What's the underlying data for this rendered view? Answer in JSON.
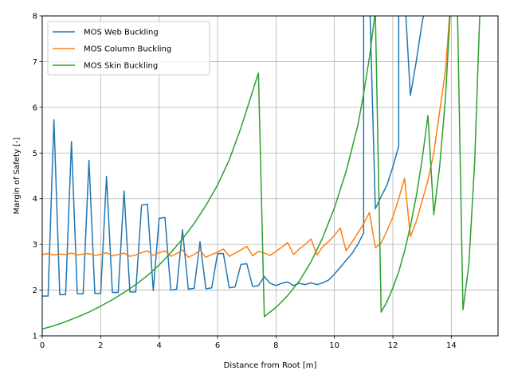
{
  "chart_data": {
    "type": "line",
    "xlabel": "Distance from Root [m]",
    "ylabel": "Margin of Safety [-]",
    "xlim": [
      0,
      15.6
    ],
    "ylim": [
      1,
      8
    ],
    "xticks": [
      "0",
      "2",
      "4",
      "6",
      "8",
      "10",
      "12",
      "14"
    ],
    "xtick_values": [
      0,
      2,
      4,
      6,
      8,
      10,
      12,
      14
    ],
    "yticks": [
      "1",
      "2",
      "3",
      "4",
      "5",
      "6",
      "7",
      "8"
    ],
    "ytick_values": [
      1,
      2,
      3,
      4,
      5,
      6,
      7,
      8
    ],
    "grid": true,
    "legend_position": "upper-left",
    "series": [
      {
        "name": "MOS Web Buckling",
        "color": "#1f77b4",
        "x": [
          0,
          0.2,
          0.4,
          0.6,
          0.8,
          1.0,
          1.2,
          1.4,
          1.6,
          1.8,
          2.0,
          2.2,
          2.4,
          2.6,
          2.8,
          3.0,
          3.2,
          3.4,
          3.6,
          3.8,
          4.0,
          4.2,
          4.4,
          4.6,
          4.8,
          5.0,
          5.2,
          5.4,
          5.6,
          5.8,
          6.0,
          6.2,
          6.4,
          6.6,
          6.8,
          7.0,
          7.2,
          7.4,
          7.6,
          7.8,
          8.0,
          8.2,
          8.4,
          8.6,
          8.8,
          9.0,
          9.2,
          9.4,
          9.6,
          9.8,
          10.0,
          10.2,
          10.4,
          10.6,
          10.8,
          11.0,
          11.0,
          11.2,
          11.4,
          11.6,
          11.8,
          12.0,
          12.2,
          12.2,
          12.4,
          12.6,
          12.8,
          13.0,
          13.2,
          13.4,
          13.6,
          13.8,
          14.0,
          14.2,
          14.4,
          14.6,
          14.8,
          15.0,
          15.2,
          15.4,
          15.6
        ],
        "y": [
          1.87,
          1.87,
          5.73,
          1.9,
          1.9,
          5.25,
          1.92,
          1.92,
          4.84,
          1.93,
          1.93,
          4.49,
          1.95,
          1.95,
          4.17,
          1.96,
          1.96,
          3.86,
          3.88,
          1.99,
          3.57,
          3.59,
          2.0,
          2.02,
          3.32,
          2.02,
          2.04,
          3.06,
          2.03,
          2.05,
          2.8,
          2.8,
          2.05,
          2.07,
          2.56,
          2.58,
          2.08,
          2.1,
          2.3,
          2.15,
          2.1,
          2.15,
          2.18,
          2.1,
          2.15,
          2.12,
          2.16,
          2.12,
          2.16,
          2.22,
          2.35,
          2.5,
          2.65,
          2.8,
          3.0,
          3.25,
          8.5,
          8.5,
          3.78,
          4.05,
          4.3,
          4.7,
          5.15,
          8.5,
          8.5,
          6.26,
          7.0,
          7.85,
          8.5,
          8.5,
          8.5,
          8.5,
          8.5,
          8.5,
          8.5,
          8.5,
          8.5,
          8.5,
          8.5,
          8.5,
          8.5
        ]
      },
      {
        "name": "MOS Column Buckling",
        "color": "#ff7f0e",
        "x": [
          0,
          0.2,
          0.4,
          0.6,
          0.8,
          1.0,
          1.2,
          1.4,
          1.6,
          1.8,
          2.0,
          2.2,
          2.4,
          2.6,
          2.8,
          3.0,
          3.2,
          3.4,
          3.6,
          3.8,
          4.0,
          4.2,
          4.4,
          4.6,
          4.8,
          5.0,
          5.2,
          5.4,
          5.6,
          5.8,
          6.0,
          6.2,
          6.4,
          6.6,
          6.8,
          7.0,
          7.2,
          7.4,
          7.6,
          7.8,
          8.0,
          8.2,
          8.4,
          8.6,
          8.8,
          9.0,
          9.2,
          9.4,
          9.6,
          9.8,
          10.0,
          10.2,
          10.4,
          10.6,
          10.8,
          11.0,
          11.2,
          11.4,
          11.6,
          11.8,
          12.0,
          12.2,
          12.4,
          12.6,
          12.8,
          13.0,
          13.2,
          13.4,
          13.6,
          13.8,
          14.0,
          14.2,
          14.4,
          14.6,
          14.8,
          15.0,
          15.2,
          15.4,
          15.6
        ],
        "y": [
          2.78,
          2.8,
          2.77,
          2.79,
          2.78,
          2.81,
          2.77,
          2.79,
          2.8,
          2.76,
          2.78,
          2.82,
          2.75,
          2.78,
          2.81,
          2.74,
          2.77,
          2.82,
          2.86,
          2.76,
          2.82,
          2.86,
          2.74,
          2.8,
          2.88,
          2.72,
          2.78,
          2.87,
          2.72,
          2.78,
          2.83,
          2.9,
          2.74,
          2.81,
          2.88,
          2.96,
          2.75,
          2.85,
          2.81,
          2.76,
          2.85,
          2.94,
          3.04,
          2.78,
          2.9,
          3.0,
          3.12,
          2.77,
          2.95,
          3.06,
          3.2,
          3.36,
          2.86,
          3.05,
          3.25,
          3.45,
          3.7,
          2.93,
          3.03,
          3.3,
          3.6,
          4.0,
          4.45,
          3.17,
          3.5,
          3.95,
          4.4,
          5.0,
          5.9,
          6.8,
          8.5,
          8.5,
          8.5,
          8.5,
          8.5,
          8.5,
          8.5,
          8.5,
          8.5
        ]
      },
      {
        "name": "MOS Skin Buckling",
        "color": "#2ca02c",
        "x": [
          0,
          0.4,
          0.8,
          1.2,
          1.6,
          2.0,
          2.4,
          2.8,
          3.2,
          3.6,
          4.0,
          4.4,
          4.8,
          5.2,
          5.6,
          6.0,
          6.4,
          6.8,
          7.0,
          7.2,
          7.4,
          7.6,
          8.0,
          8.4,
          8.8,
          9.2,
          9.6,
          10.0,
          10.4,
          10.8,
          11.0,
          11.2,
          11.4,
          11.6,
          11.8,
          12.0,
          12.2,
          12.4,
          12.6,
          12.8,
          13.0,
          13.2,
          13.4,
          13.6,
          13.8,
          14.0,
          14.2,
          14.4,
          14.6,
          14.8,
          15.0,
          15.2,
          15.4,
          15.6
        ],
        "y": [
          1.15,
          1.22,
          1.31,
          1.41,
          1.52,
          1.65,
          1.79,
          1.95,
          2.12,
          2.32,
          2.55,
          2.82,
          3.12,
          3.46,
          3.85,
          4.3,
          4.85,
          5.55,
          5.95,
          6.35,
          6.75,
          1.42,
          1.62,
          1.88,
          2.2,
          2.62,
          3.15,
          3.8,
          4.6,
          5.6,
          6.3,
          7.1,
          8.1,
          1.52,
          1.75,
          2.05,
          2.4,
          2.85,
          3.4,
          4.05,
          4.85,
          5.82,
          3.65,
          4.7,
          6.2,
          8.5,
          8.5,
          1.57,
          2.55,
          4.8,
          8.5,
          8.5,
          8.5,
          8.5
        ]
      }
    ]
  }
}
